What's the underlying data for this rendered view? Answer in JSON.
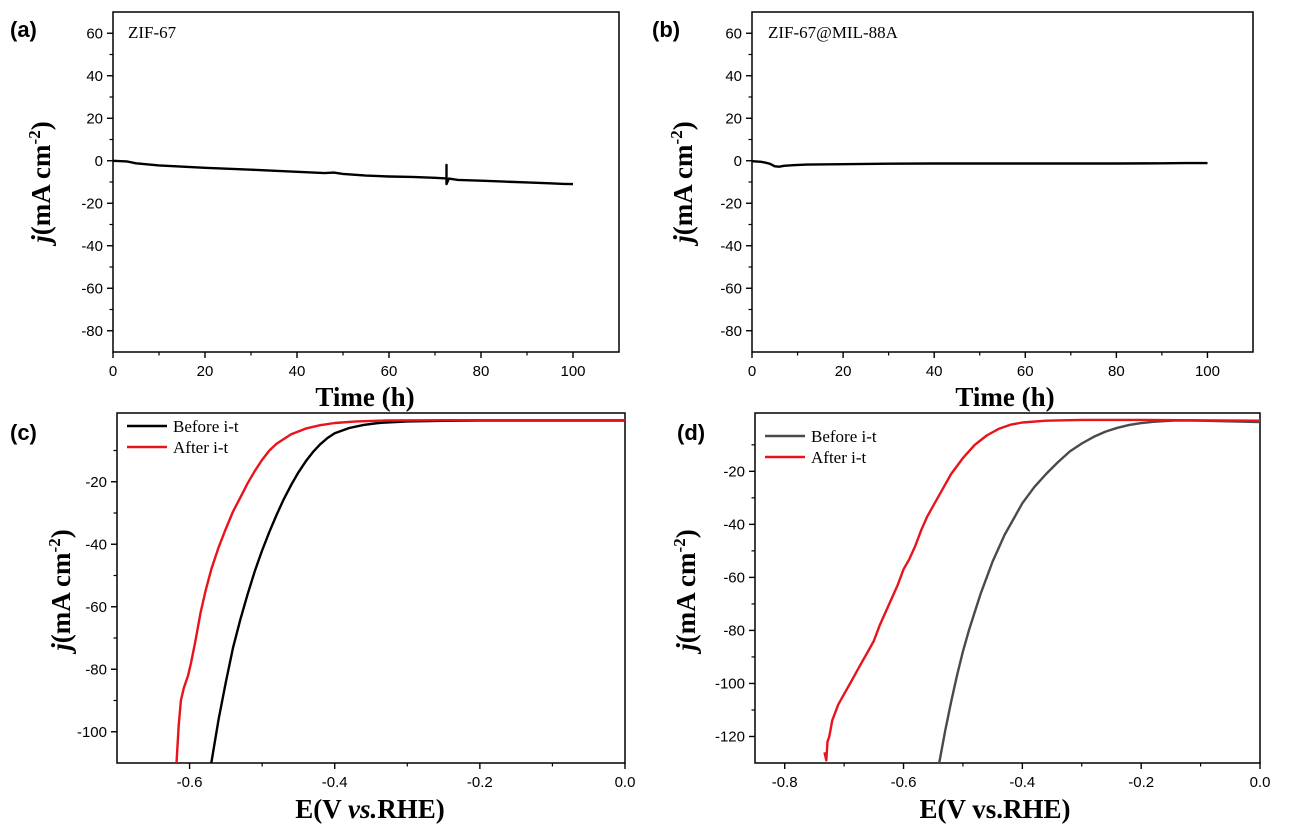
{
  "chart_data": [
    {
      "panel": "(a)",
      "type": "line",
      "annotation": "ZIF-67",
      "xlabel": "Time (h)",
      "ylabel": "j(mA cm-2)",
      "xlim": [
        0,
        110
      ],
      "ylim": [
        -90,
        70
      ],
      "xticks": [
        "0",
        "20",
        "40",
        "60",
        "80",
        "100"
      ],
      "yticks": [
        "60",
        "40",
        "20",
        "0",
        "-20",
        "-40",
        "-60",
        "-80"
      ],
      "series": [
        {
          "name": "ZIF-67",
          "color": "#000000",
          "x": [
            0,
            3,
            5,
            10,
            20,
            30,
            40,
            46,
            48,
            50,
            55,
            60,
            65,
            70,
            72.5,
            72.5,
            72.5,
            73,
            75,
            80,
            85,
            90,
            95,
            98,
            100
          ],
          "y": [
            0,
            -0.3,
            -1.2,
            -2.2,
            -3.3,
            -4.2,
            -5.2,
            -5.8,
            -5.6,
            -6.2,
            -7,
            -7.4,
            -7.6,
            -8,
            -8.3,
            -2,
            -11,
            -8.4,
            -9,
            -9.4,
            -9.8,
            -10.2,
            -10.6,
            -10.9,
            -11
          ]
        }
      ]
    },
    {
      "panel": "(b)",
      "type": "line",
      "annotation": "ZIF-67@MIL-88A",
      "xlabel": "Time (h)",
      "ylabel": "j(mA cm-2)",
      "xlim": [
        0,
        110
      ],
      "ylim": [
        -90,
        70
      ],
      "xticks": [
        "0",
        "20",
        "40",
        "60",
        "80",
        "100"
      ],
      "yticks": [
        "60",
        "40",
        "20",
        "0",
        "-20",
        "-40",
        "-60",
        "-80"
      ],
      "series": [
        {
          "name": "ZIF-67@MIL-88A",
          "color": "#000000",
          "x": [
            0,
            2,
            3,
            4,
            5,
            6,
            7,
            9,
            12,
            20,
            30,
            40,
            50,
            60,
            70,
            80,
            90,
            95,
            100
          ],
          "y": [
            -0.2,
            -0.5,
            -0.9,
            -1.5,
            -2.6,
            -2.8,
            -2.4,
            -2.1,
            -1.8,
            -1.6,
            -1.4,
            -1.3,
            -1.3,
            -1.3,
            -1.3,
            -1.3,
            -1.2,
            -1.1,
            -1.1
          ]
        }
      ]
    },
    {
      "panel": "(c)",
      "type": "line",
      "xlabel": "E(V vs.RHE)",
      "ylabel": "j(mA cm-2)",
      "xlim": [
        -0.7,
        0.0
      ],
      "ylim": [
        -110,
        2
      ],
      "xticks": [
        "-0.6",
        "-0.4",
        "-0.2",
        "0.0"
      ],
      "yticks": [
        "-20",
        "-40",
        "-60",
        "-80",
        "-100"
      ],
      "legend": [
        "Before i-t",
        "After i-t"
      ],
      "series": [
        {
          "name": "Before i-t",
          "color": "#000000",
          "x": [
            -0.57,
            -0.56,
            -0.55,
            -0.54,
            -0.53,
            -0.52,
            -0.51,
            -0.5,
            -0.49,
            -0.48,
            -0.47,
            -0.46,
            -0.45,
            -0.44,
            -0.43,
            -0.42,
            -0.41,
            -0.4,
            -0.38,
            -0.36,
            -0.34,
            -0.3,
            -0.25,
            -0.2,
            0.0
          ],
          "y": [
            -110,
            -96,
            -84,
            -73,
            -64,
            -56,
            -48.5,
            -42,
            -36,
            -30.5,
            -25.5,
            -21,
            -17,
            -13.5,
            -10.5,
            -8,
            -6,
            -4.5,
            -2.8,
            -1.8,
            -1.2,
            -0.7,
            -0.5,
            -0.4,
            -0.4
          ]
        },
        {
          "name": "After i-t",
          "color": "#e8131b",
          "x": [
            -0.618,
            -0.615,
            -0.612,
            -0.608,
            -0.602,
            -0.598,
            -0.592,
            -0.585,
            -0.578,
            -0.57,
            -0.56,
            -0.55,
            -0.54,
            -0.53,
            -0.52,
            -0.51,
            -0.5,
            -0.49,
            -0.48,
            -0.46,
            -0.44,
            -0.42,
            -0.4,
            -0.37,
            -0.33,
            -0.25,
            -0.1,
            0.0
          ],
          "y": [
            -110,
            -98,
            -90,
            -86,
            -82,
            -78,
            -71,
            -62,
            -55,
            -48,
            -41,
            -35,
            -29.5,
            -25,
            -20.5,
            -16.5,
            -13,
            -10,
            -7.8,
            -4.8,
            -3,
            -1.9,
            -1.2,
            -0.7,
            -0.4,
            -0.3,
            -0.3,
            -0.3
          ]
        }
      ]
    },
    {
      "panel": "(d)",
      "type": "line",
      "xlabel": "E(V vs.RHE)",
      "ylabel": "j(mA cm-2)",
      "xlim": [
        -0.85,
        0.0
      ],
      "ylim": [
        -130,
        2
      ],
      "xticks": [
        "-0.8",
        "-0.6",
        "-0.4",
        "-0.2",
        "0.0"
      ],
      "yticks": [
        "-20",
        "-40",
        "-60",
        "-80",
        "-100",
        "-120"
      ],
      "legend": [
        "Before i-t",
        "After i-t"
      ],
      "series": [
        {
          "name": "Before i-t",
          "color": "#4a4a4a",
          "x": [
            -0.54,
            -0.53,
            -0.52,
            -0.51,
            -0.5,
            -0.49,
            -0.48,
            -0.47,
            -0.46,
            -0.45,
            -0.44,
            -0.43,
            -0.42,
            -0.41,
            -0.4,
            -0.38,
            -0.36,
            -0.34,
            -0.32,
            -0.3,
            -0.28,
            -0.26,
            -0.24,
            -0.22,
            -0.2,
            -0.18,
            -0.16,
            -0.14,
            -0.1,
            0.0
          ],
          "y": [
            -130,
            -118,
            -107,
            -97,
            -88,
            -80,
            -73,
            -66,
            -60,
            -54,
            -49,
            -44,
            -40,
            -36,
            -32,
            -26,
            -21,
            -16.5,
            -12.5,
            -9.5,
            -7,
            -5,
            -3.6,
            -2.5,
            -1.8,
            -1.3,
            -1,
            -0.8,
            -0.9,
            -1.4
          ]
        },
        {
          "name": "After i-t",
          "color": "#e8131b",
          "x": [
            -0.733,
            -0.73,
            -0.728,
            -0.725,
            -0.72,
            -0.71,
            -0.7,
            -0.69,
            -0.68,
            -0.67,
            -0.66,
            -0.65,
            -0.64,
            -0.63,
            -0.62,
            -0.61,
            -0.6,
            -0.59,
            -0.58,
            -0.57,
            -0.56,
            -0.55,
            -0.54,
            -0.52,
            -0.5,
            -0.48,
            -0.46,
            -0.44,
            -0.42,
            -0.4,
            -0.36,
            -0.3,
            -0.2,
            0.0
          ],
          "y": [
            -126,
            -129,
            -122,
            -120,
            -114,
            -108,
            -104,
            -100,
            -96,
            -92,
            -88,
            -84,
            -78,
            -73,
            -68,
            -63,
            -57,
            -53,
            -48,
            -42,
            -37,
            -33,
            -29,
            -21,
            -15,
            -10,
            -6.5,
            -4,
            -2.4,
            -1.6,
            -0.9,
            -0.6,
            -0.6,
            -0.9
          ]
        }
      ]
    }
  ]
}
